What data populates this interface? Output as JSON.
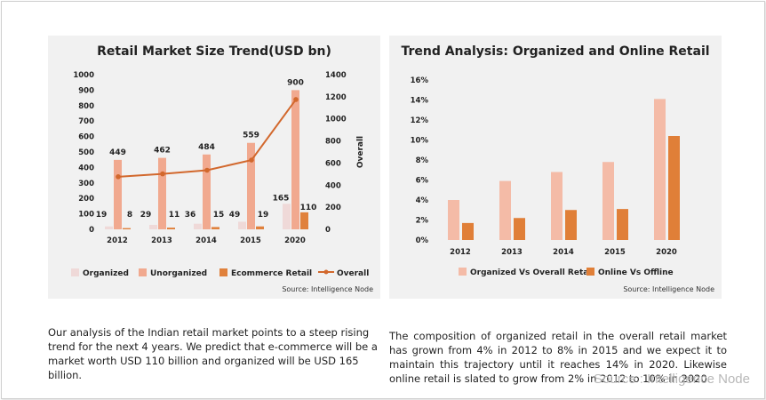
{
  "chart_data": [
    {
      "type": "bar",
      "title": "Retail Market Size Trend(USD bn)",
      "categories": [
        "2012",
        "2013",
        "2014",
        "2015",
        "2020"
      ],
      "series": [
        {
          "name": "Organized",
          "values": [
            19,
            29,
            36,
            49,
            165
          ],
          "axis": "left"
        },
        {
          "name": "Unorganized",
          "values": [
            449,
            462,
            484,
            559,
            900
          ],
          "axis": "left"
        },
        {
          "name": "Ecommerce Retail",
          "values": [
            8,
            11,
            15,
            19,
            110
          ],
          "axis": "left"
        },
        {
          "name": "Overall",
          "type": "line",
          "values": [
            476,
            502,
            535,
            627,
            1175
          ],
          "axis": "right"
        }
      ],
      "ylim": [
        0,
        1000
      ],
      "yticks": [
        "1000",
        "900",
        "800",
        "700",
        "600",
        "500",
        "400",
        "300",
        "200",
        "100",
        "0"
      ],
      "y2lim": [
        0,
        1400
      ],
      "y2ticks": [
        "1400",
        "1200",
        "1000",
        "800",
        "600",
        "400",
        "200",
        "0"
      ],
      "y2label": "Overall",
      "source": "Source: Intelligence Node",
      "colors": {
        "Organized": "#efd9d8",
        "Unorganized": "#f1a98f",
        "Ecommerce Retail": "#e0813c",
        "Overall": "#d2682d"
      }
    },
    {
      "type": "bar",
      "title": "Trend Analysis: Organized and Online Retail",
      "categories": [
        "2012",
        "2013",
        "2014",
        "2015",
        "2020"
      ],
      "series": [
        {
          "name": "Organized Vs Overall Retail",
          "values": [
            4.0,
            5.9,
            6.8,
            7.8,
            14.1
          ]
        },
        {
          "name": "Online Vs Offline",
          "values": [
            1.7,
            2.2,
            3.0,
            3.1,
            10.4
          ]
        }
      ],
      "ylim": [
        0,
        16
      ],
      "yticks": [
        "16%",
        "14%",
        "12%",
        "10%",
        "8%",
        "6%",
        "4%",
        "2%",
        "0%"
      ],
      "source": "Source: Intelligence Node",
      "colors": {
        "Organized Vs Overall Retail": "#f4bba7",
        "Online Vs Offline": "#e07f38"
      }
    }
  ],
  "text": {
    "para_left": "Our analysis of the Indian retail market points to a steep rising trend for the next 4 years. We predict that e-commerce will be a market worth USD 110 billion and organized will be USD 165 billion.",
    "para_right": "The composition of organized retail in the overall retail market has grown from 4% in 2012 to 8% in 2015 and we expect it to maintain this trajectory until it reaches 14% in 2020. Likewise online retail is slated to grow from 2% in 2012 to 10% in 2020.",
    "watermark": "Source : Intelligence Node"
  }
}
